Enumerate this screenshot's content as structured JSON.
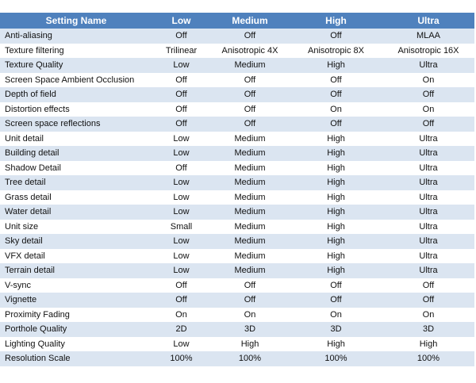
{
  "table": {
    "header": [
      "Setting Name",
      "Low",
      "Medium",
      "High",
      "Ultra"
    ],
    "rows": [
      [
        "Anti-aliasing",
        "Off",
        "Off",
        "Off",
        "MLAA"
      ],
      [
        "Texture filtering",
        "Trilinear",
        "Anisotropic 4X",
        "Anisotropic 8X",
        "Anisotropic 16X"
      ],
      [
        "Texture Quality",
        "Low",
        "Medium",
        "High",
        "Ultra"
      ],
      [
        "Screen Space Ambient Occlusion",
        "Off",
        "Off",
        "Off",
        "On"
      ],
      [
        "Depth of field",
        "Off",
        "Off",
        "Off",
        "Off"
      ],
      [
        "Distortion effects",
        "Off",
        "Off",
        "On",
        "On"
      ],
      [
        "Screen space reflections",
        "Off",
        "Off",
        "Off",
        "Off"
      ],
      [
        "Unit detail",
        "Low",
        "Medium",
        "High",
        "Ultra"
      ],
      [
        "Building detail",
        "Low",
        "Medium",
        "High",
        "Ultra"
      ],
      [
        "Shadow Detail",
        "Off",
        "Medium",
        "High",
        "Ultra"
      ],
      [
        "Tree detail",
        "Low",
        "Medium",
        "High",
        "Ultra"
      ],
      [
        "Grass detail",
        "Low",
        "Medium",
        "High",
        "Ultra"
      ],
      [
        "Water detail",
        "Low",
        "Medium",
        "High",
        "Ultra"
      ],
      [
        "Unit size",
        "Small",
        "Medium",
        "High",
        "Ultra"
      ],
      [
        "Sky detail",
        "Low",
        "Medium",
        "High",
        "Ultra"
      ],
      [
        "VFX detail",
        "Low",
        "Medium",
        "High",
        "Ultra"
      ],
      [
        "Terrain detail",
        "Low",
        "Medium",
        "High",
        "Ultra"
      ],
      [
        "V-sync",
        "Off",
        "Off",
        "Off",
        "Off"
      ],
      [
        "Vignette",
        "Off",
        "Off",
        "Off",
        "Off"
      ],
      [
        "Proximity Fading",
        "On",
        "On",
        "On",
        "On"
      ],
      [
        "Porthole Quality",
        "2D",
        "3D",
        "3D",
        "3D"
      ],
      [
        "Lighting Quality",
        "Low",
        "High",
        "High",
        "High"
      ],
      [
        "Resolution Scale",
        "100%",
        "100%",
        "100%",
        "100%"
      ]
    ]
  }
}
